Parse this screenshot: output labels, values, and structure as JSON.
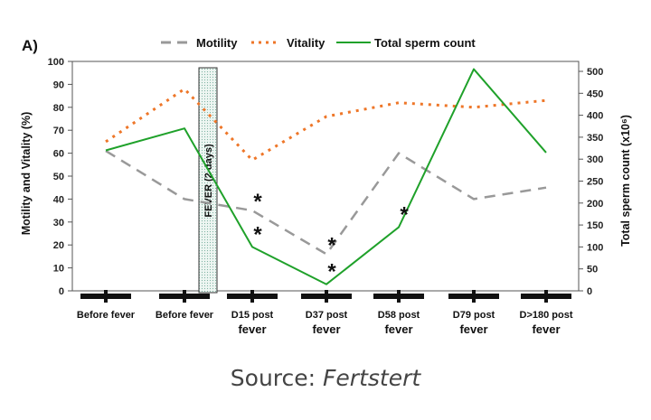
{
  "panel_label": "A)",
  "source": {
    "prefix": "Source:",
    "name": "Fertstert"
  },
  "fever_label": "FEVER (2 days)",
  "significance_marker": "*",
  "colors": {
    "motility": "#999999",
    "vitality": "#ee7628",
    "total": "#1fa12a",
    "fever_box_border": "#333333"
  },
  "chart_data": {
    "type": "line",
    "title": "",
    "categories": [
      [
        "Before fever"
      ],
      [
        "Before fever"
      ],
      [
        "D15 post",
        "fever"
      ],
      [
        "D37 post",
        "fever"
      ],
      [
        "D58 post",
        "fever"
      ],
      [
        "D79 post",
        "fever"
      ],
      [
        "D>180 post",
        "fever"
      ]
    ],
    "ylabel": "Motility and Vitality (%)",
    "ylim": [
      0,
      100
    ],
    "yticks": [
      0,
      10,
      20,
      30,
      40,
      50,
      60,
      70,
      80,
      90,
      100
    ],
    "y2label": "Total sperm count (x10⁶)",
    "y2lim": [
      0,
      500
    ],
    "y2ticks": [
      0,
      50,
      100,
      150,
      200,
      250,
      300,
      350,
      400,
      450,
      500
    ],
    "legend_position": "top",
    "grid": false,
    "series": [
      {
        "name": "Motility",
        "axis": "left",
        "style": "dashed",
        "values": [
          61,
          40,
          35,
          16,
          60,
          40,
          45
        ]
      },
      {
        "name": "Vitality",
        "axis": "left",
        "style": "dotted",
        "values": [
          65,
          88,
          57,
          76,
          82,
          80,
          83
        ]
      },
      {
        "name": "Total sperm count",
        "axis": "right",
        "style": "solid",
        "values": [
          320,
          370,
          100,
          15,
          145,
          505,
          315
        ]
      }
    ],
    "fever_span": {
      "from_category": 1,
      "to_category": 2
    },
    "significance": [
      {
        "series": "Motility",
        "category": 2
      },
      {
        "series": "Total sperm count",
        "category": 2
      },
      {
        "series": "Motility",
        "category": 3
      },
      {
        "series": "Total sperm count",
        "category": 3
      },
      {
        "series": "Total sperm count",
        "category": 4
      }
    ]
  }
}
